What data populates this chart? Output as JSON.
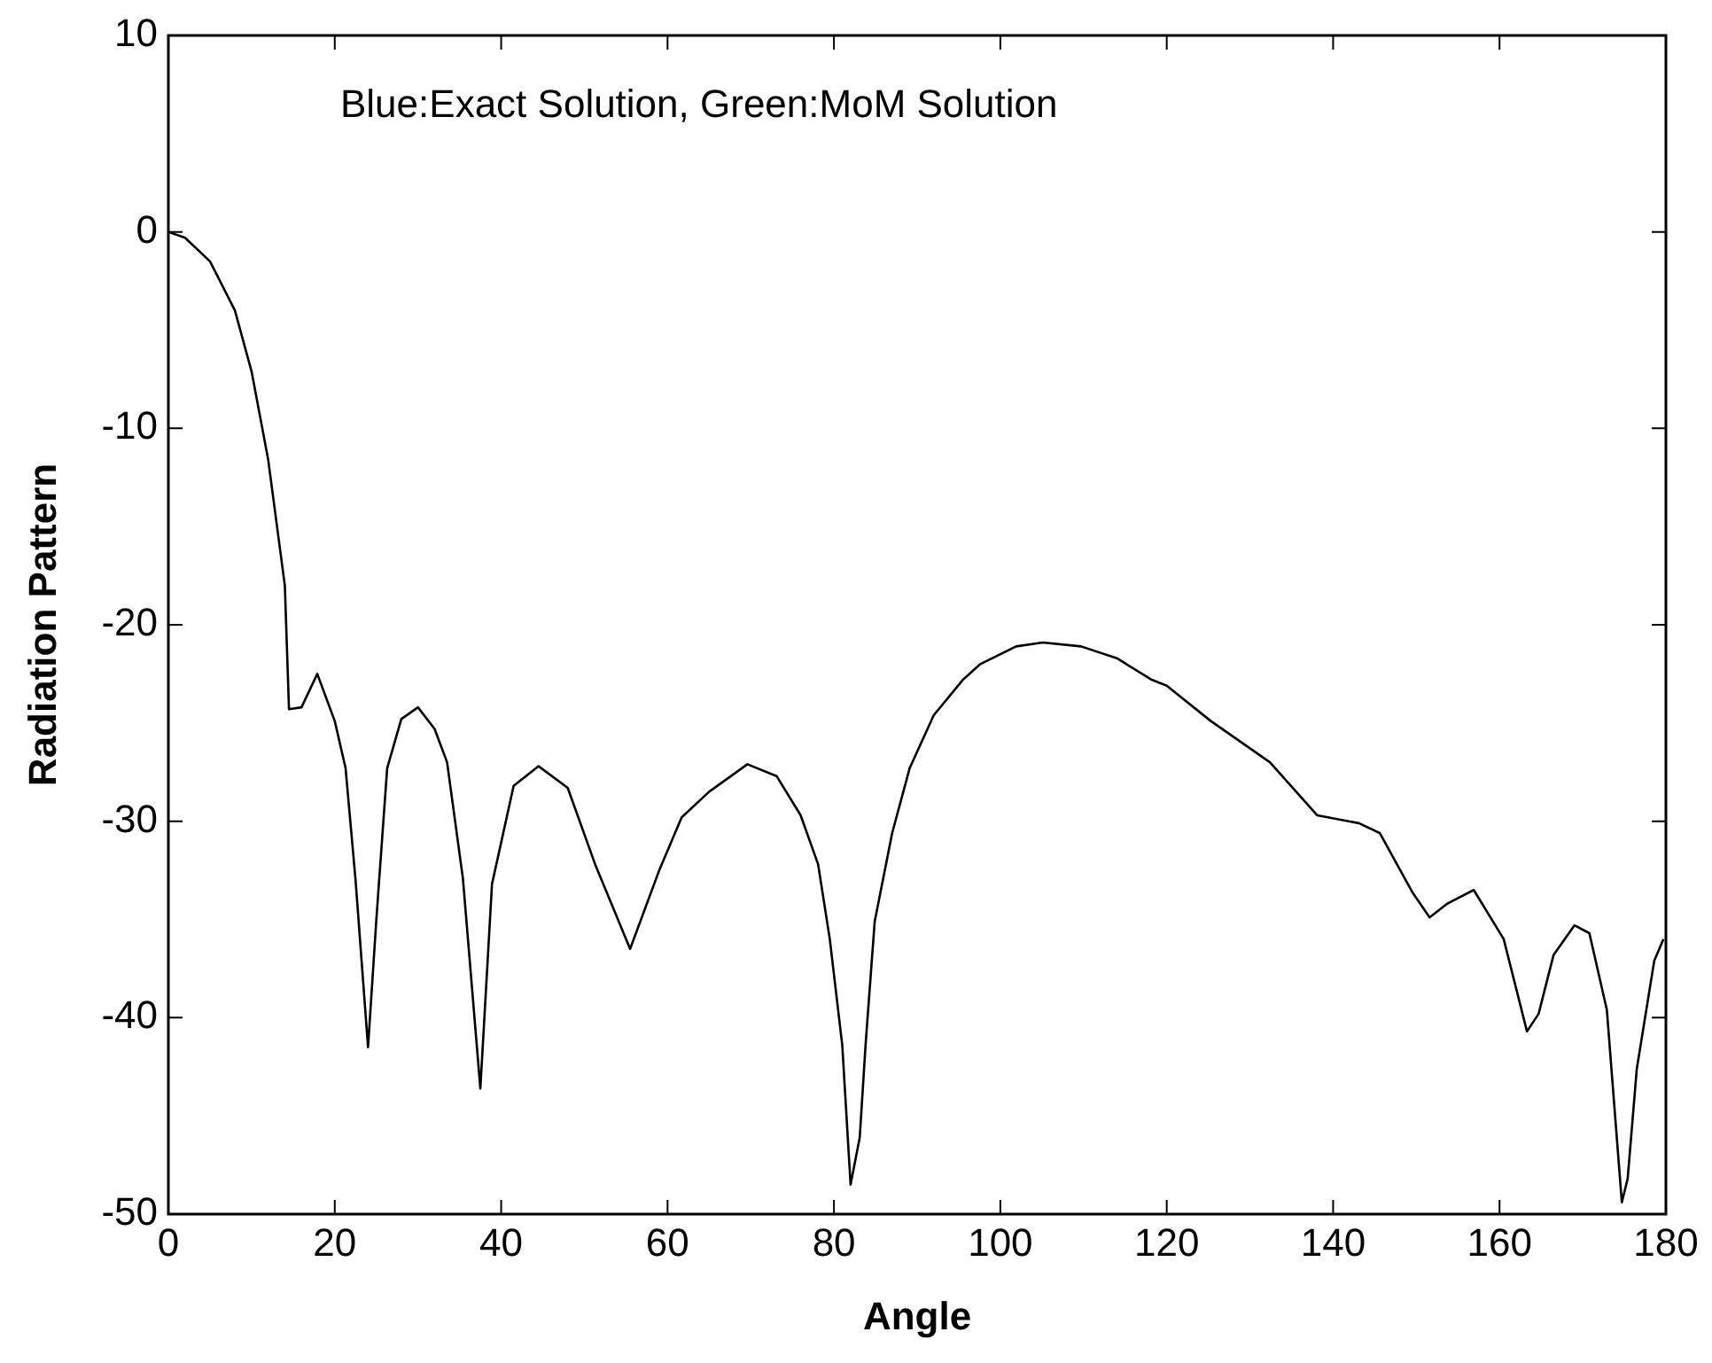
{
  "chart_data": {
    "type": "line",
    "xlabel": "Angle",
    "ylabel": "Radiation Pattern",
    "annotations": [
      "Blue:Exact Solution, Green:MoM Solution"
    ],
    "x": [
      0,
      2,
      5,
      8,
      10,
      12,
      14,
      14.5,
      16,
      17.9,
      20,
      21.3,
      22.5,
      24,
      25,
      26.3,
      28,
      30,
      32,
      33.5,
      35.4,
      37.5,
      38.9,
      41.5,
      44.5,
      48,
      51.3,
      55.5,
      59,
      61.7,
      65,
      69.6,
      73.1,
      76,
      78.1,
      79.5,
      81,
      82,
      83.1,
      83.8,
      84.9,
      87,
      89.1,
      92,
      95.5,
      97.6,
      101.9,
      105.1,
      109.7,
      114,
      118.2,
      120,
      125.3,
      132.4,
      138.1,
      143.1,
      145.6,
      149.5,
      151.6,
      153.7,
      156.9,
      160.5,
      163.3,
      164.7,
      166.5,
      169,
      170.8,
      172.9,
      174.7,
      175.4,
      176.5,
      178.6,
      179.7
    ],
    "series": [
      {
        "color": "#000000",
        "values": [
          0,
          -0.3,
          -1.5,
          -4,
          -7.1,
          -11.6,
          -18,
          -24.3,
          -24.2,
          -22.5,
          -24.9,
          -27.3,
          -33,
          -41.5,
          -35,
          -27.3,
          -24.8,
          -24.2,
          -25.3,
          -27,
          -32.9,
          -43.6,
          -33.2,
          -28.2,
          -27.2,
          -28.3,
          -32.2,
          -36.5,
          -32.5,
          -29.8,
          -28.5,
          -27.1,
          -27.7,
          -29.7,
          -32.2,
          -36,
          -41.4,
          -48.5,
          -46.1,
          -41.4,
          -35.1,
          -30.6,
          -27.3,
          -24.6,
          -22.8,
          -22,
          -21.1,
          -20.9,
          -21.1,
          -21.7,
          -22.8,
          -23.1,
          -24.9,
          -27,
          -29.7,
          -30.1,
          -30.6,
          -33.6,
          -34.9,
          -34.2,
          -33.5,
          -36,
          -40.7,
          -39.8,
          -36.8,
          -35.3,
          -35.7,
          -39.6,
          -49.4,
          -48.2,
          -42.6,
          -37.1,
          -36
        ]
      }
    ],
    "xlim": [
      0,
      180
    ],
    "xticks": [
      0,
      20,
      40,
      60,
      80,
      100,
      120,
      140,
      160,
      180
    ],
    "ylim": [
      -50,
      10
    ],
    "yticks": [
      -50,
      -40,
      -30,
      -20,
      -10,
      0,
      10
    ],
    "grid": false,
    "legend": false
  }
}
